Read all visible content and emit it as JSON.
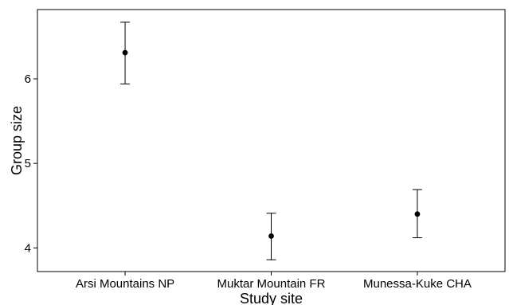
{
  "chart_data": {
    "type": "scatter",
    "title": "",
    "xlabel": "Study site",
    "ylabel": "Group size",
    "categories": [
      "Arsi Mountains NP",
      "Muktar Mountain FR",
      "Munessa-Kuke CHA"
    ],
    "series": [
      {
        "values": [
          6.31,
          4.14,
          4.4
        ],
        "lower": [
          5.94,
          3.86,
          4.12
        ],
        "upper": [
          6.67,
          4.41,
          4.69
        ]
      }
    ],
    "ylim": [
      3.72,
      6.82
    ],
    "yticks": [
      4,
      5,
      6
    ],
    "ytick_labels": [
      "4",
      "5",
      "6"
    ],
    "grid": false,
    "legend": "none",
    "colors": {
      "point": "#000000",
      "errorbar": "#000000",
      "axis": "#000000"
    }
  }
}
